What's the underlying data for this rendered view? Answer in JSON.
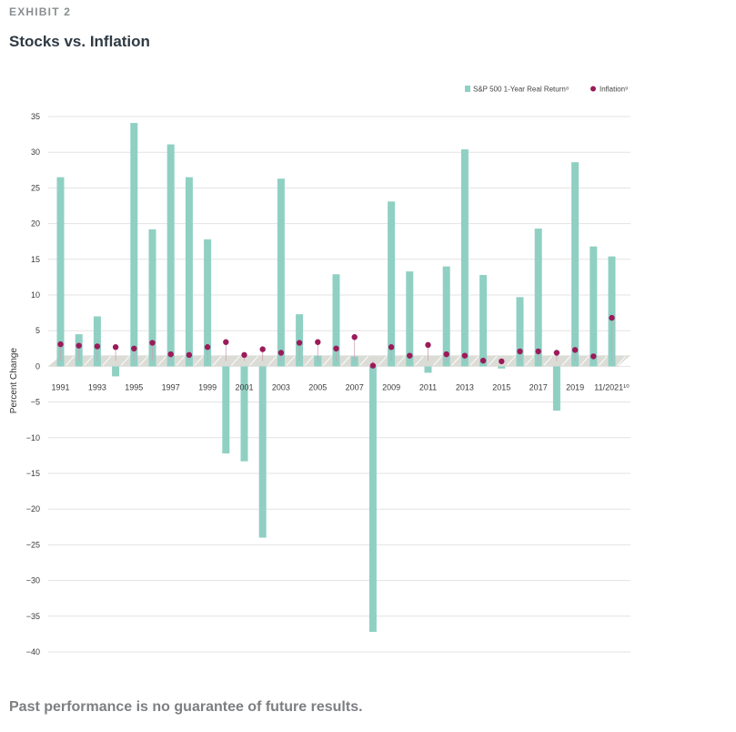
{
  "header": {
    "exhibit": "EXHIBIT 2",
    "title": "Stocks vs. Inflation"
  },
  "footer": {
    "note": "Past performance is no guarantee of future results."
  },
  "colors": {
    "bar": "#8fd0c3",
    "dot": "#9b1b5a",
    "band": "#dcdcd7",
    "grid": "#e3e3e3"
  },
  "chart_data": {
    "type": "bar",
    "ylabel": "Percent Change",
    "ylim": [
      -40,
      35
    ],
    "yticks": [
      35,
      30,
      25,
      20,
      15,
      10,
      5,
      0,
      -5,
      -10,
      -15,
      -20,
      -25,
      -30,
      -35,
      -40
    ],
    "grid": true,
    "legend_position": "top-right",
    "x_labels": [
      "1991",
      "1993",
      "1995",
      "1997",
      "1999",
      "2001",
      "2003",
      "2005",
      "2007",
      "2009",
      "2011",
      "2013",
      "2015",
      "2017",
      "2019",
      "11/2021¹⁰"
    ],
    "legend": [
      {
        "label": "S&P 500 1-Year Real Return⁸",
        "kind": "bar"
      },
      {
        "label": "Inflation⁹",
        "kind": "dot"
      }
    ],
    "categories": [
      "1991",
      "1992",
      "1993",
      "1994",
      "1995",
      "1996",
      "1997",
      "1998",
      "1999",
      "2000",
      "2001",
      "2002",
      "2003",
      "2004",
      "2005",
      "2006",
      "2007",
      "2008",
      "2009",
      "2010",
      "2011",
      "2012",
      "2013",
      "2014",
      "2015",
      "2016",
      "2017",
      "2018",
      "2019",
      "2020",
      "11/2021"
    ],
    "series": [
      {
        "name": "S&P 500 1-Year Real Return⁸",
        "kind": "bar",
        "values": [
          26.5,
          4.5,
          7.0,
          -1.4,
          34.1,
          19.2,
          31.1,
          26.5,
          17.8,
          -12.2,
          -13.3,
          -24.0,
          26.3,
          7.3,
          1.5,
          12.9,
          1.4,
          -37.2,
          23.1,
          13.3,
          -0.9,
          14.0,
          30.4,
          12.8,
          -0.3,
          9.7,
          19.3,
          -6.2,
          28.6,
          16.8,
          15.4
        ]
      },
      {
        "name": "Inflation⁹",
        "kind": "dot",
        "values": [
          3.1,
          2.9,
          2.8,
          2.7,
          2.5,
          3.3,
          1.7,
          1.6,
          2.7,
          3.4,
          1.6,
          2.4,
          1.9,
          3.3,
          3.4,
          2.5,
          4.1,
          0.1,
          2.7,
          1.5,
          3.0,
          1.7,
          1.5,
          0.8,
          0.7,
          2.1,
          2.1,
          1.9,
          2.3,
          1.4,
          6.8
        ]
      }
    ]
  }
}
